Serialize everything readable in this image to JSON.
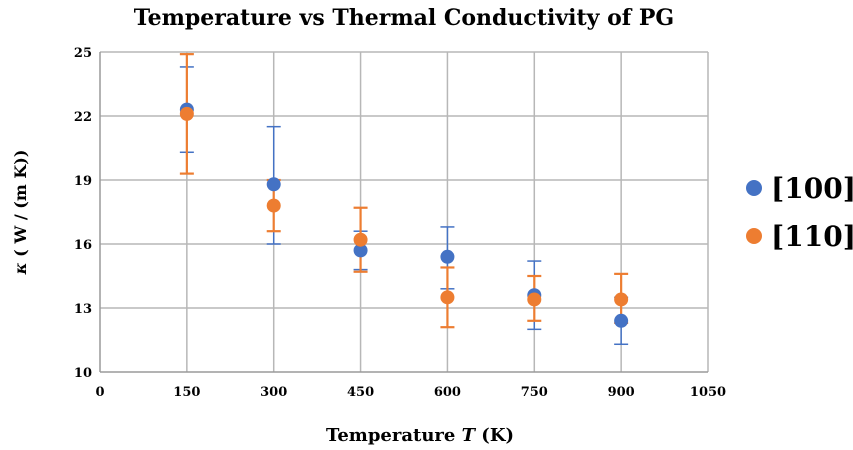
{
  "chart_data": {
    "type": "scatter",
    "title": "Temperature vs Thermal Conductivity of PG",
    "xlabel_prefix": "Temperature ",
    "xlabel_var": "T",
    "xlabel_suffix": " (K)",
    "ylabel_var": "κ",
    "ylabel_units": " ( W / (m K))",
    "xlim": [
      0,
      1050
    ],
    "ylim": [
      10,
      25
    ],
    "xticks": [
      0,
      150,
      300,
      450,
      600,
      750,
      900,
      1050
    ],
    "yticks": [
      10,
      13,
      16,
      19,
      22,
      25
    ],
    "grid": true,
    "legend_position": "right",
    "series": [
      {
        "name": "[100]",
        "color": "#4472C4",
        "x": [
          150,
          300,
          450,
          600,
          750,
          900
        ],
        "y": [
          22.3,
          18.8,
          15.7,
          15.4,
          13.6,
          12.4
        ],
        "err_low": [
          2.0,
          2.8,
          0.9,
          1.5,
          1.6,
          1.1
        ],
        "err_high": [
          2.0,
          2.7,
          0.9,
          1.4,
          1.6,
          1.1
        ]
      },
      {
        "name": "[110]",
        "color": "#ED7D31",
        "x": [
          150,
          300,
          450,
          600,
          750,
          900
        ],
        "y": [
          22.1,
          17.8,
          16.2,
          13.5,
          13.4,
          13.4
        ],
        "err_low": [
          2.8,
          1.2,
          1.5,
          1.4,
          1.0,
          1.1
        ],
        "err_high": [
          2.8,
          1.2,
          1.5,
          1.4,
          1.1,
          1.2
        ]
      }
    ]
  }
}
